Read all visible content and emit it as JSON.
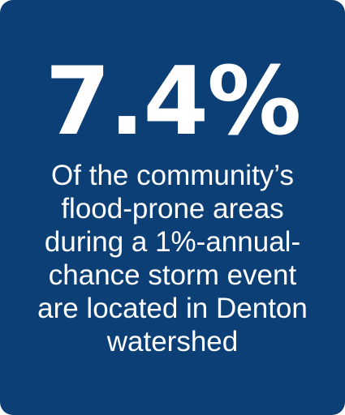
{
  "stat": {
    "value": "7.4%",
    "caption_lines": [
      "Of the community’s",
      "flood-prone areas",
      "during a 1%-annual-",
      "chance storm event",
      "are located in Denton",
      "watershed"
    ]
  },
  "colors": {
    "background": "#0b3f75",
    "text": "#ffffff"
  }
}
